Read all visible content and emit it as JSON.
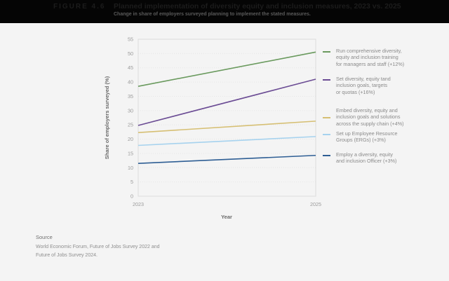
{
  "header": {
    "figure_label": "FIGURE 4.6",
    "title": "Planned implementation of diversity equity and inclusion measures, 2023 vs. 2025",
    "subtitle": "Change in share of employers surveyed planning to implement the stated measures."
  },
  "chart_data": {
    "type": "line",
    "title": "Planned implementation of diversity equity and inclusion measures, 2023 vs. 2025",
    "subtitle": "Change in share of employers surveyed planning to implement the stated measures.",
    "xlabel": "Year",
    "ylabel": "Share of employers surveyed (%)",
    "x": [
      "2023",
      "2025"
    ],
    "ylim": [
      0,
      55
    ],
    "yticks": [
      0,
      5,
      10,
      15,
      20,
      25,
      30,
      35,
      40,
      45,
      50,
      55
    ],
    "grid": true,
    "legend_position": "right",
    "series": [
      {
        "name": "Run comprehensive diversity, equity and inclusion training for managers and staff (+12%)",
        "color": "#6a9a5e",
        "values": [
          38.5,
          50.5
        ]
      },
      {
        "name": "Set diversity, equity tand inclusion goals, targets or quotas (+16%)",
        "color": "#6b4c94",
        "values": [
          24.8,
          41.0
        ]
      },
      {
        "name": "Embed diversity, equity and inclusion goals and solutions across the supply chain (+4%)",
        "color": "#d6bf73",
        "values": [
          22.3,
          26.3
        ]
      },
      {
        "name": "Set up Employee Resource Groups (ERGs) (+3%)",
        "color": "#a6d2ee",
        "values": [
          17.8,
          20.9
        ]
      },
      {
        "name": "Employ a diversity, equity and inclusion Officer (+3%)",
        "color": "#2e5e94",
        "values": [
          11.5,
          14.3
        ]
      }
    ]
  },
  "axis": {
    "ylabel": "Share of employers surveyed (%)",
    "xlabel": "Year",
    "xticks": [
      "2023",
      "2025"
    ],
    "yticks": [
      "0",
      "5",
      "10",
      "15",
      "20",
      "25",
      "30",
      "35",
      "40",
      "45",
      "50",
      "55"
    ]
  },
  "legend": [
    {
      "lines": [
        "Run comprehensive diversity,",
        "equity and inclusion training",
        "for managers and staff (+12%)"
      ],
      "color": "#6a9a5e"
    },
    {
      "lines": [
        "Set diversity, equity tand",
        "inclusion goals, targets",
        "or quotas (+16%)"
      ],
      "color": "#6b4c94"
    },
    {
      "lines": [
        "Embed diversity, equity and",
        "inclusion goals and solutions",
        "across the supply chain (+4%)"
      ],
      "color": "#d6bf73"
    },
    {
      "lines": [
        "Set up Employee Resource",
        "Groups (ERGs) (+3%)"
      ],
      "color": "#a6d2ee"
    },
    {
      "lines": [
        "Employ a diversity, equity",
        "and inclusion Officer (+3%)"
      ],
      "color": "#2e5e94"
    }
  ],
  "source": {
    "heading": "Source",
    "lines": [
      "World Economic Forum, Future of Jobs Survey 2022 and",
      "Future of Jobs Survey 2024."
    ]
  }
}
